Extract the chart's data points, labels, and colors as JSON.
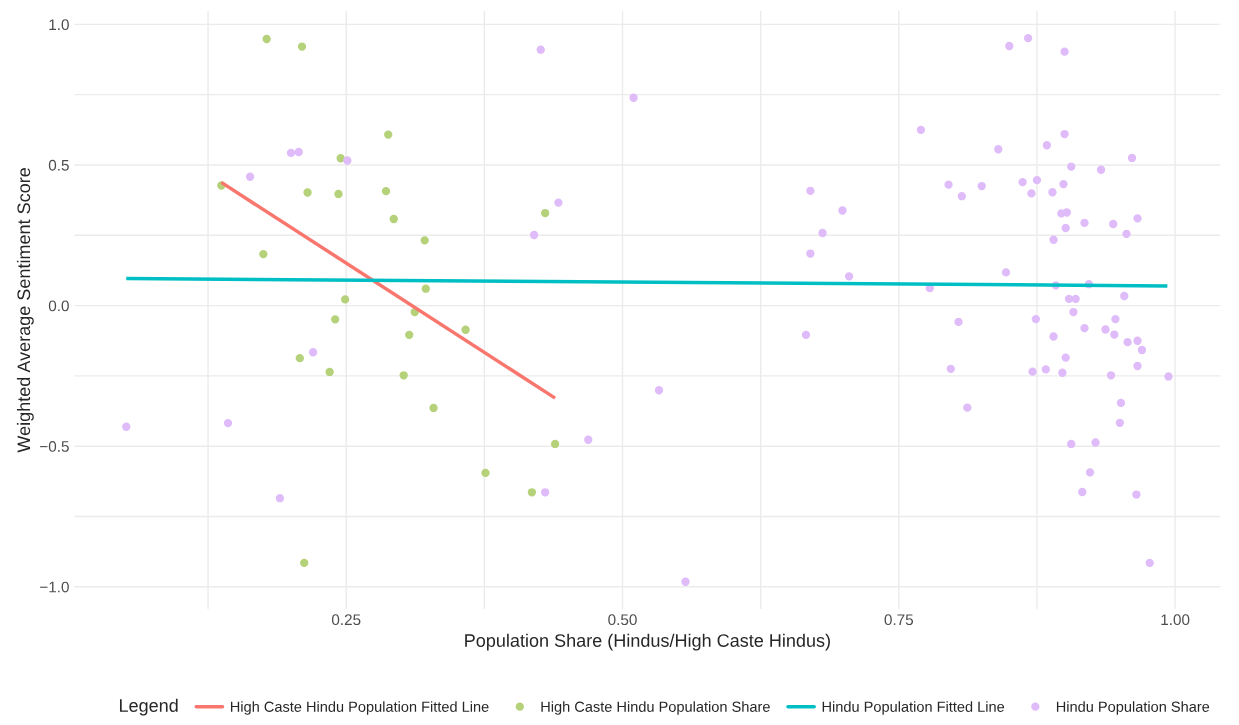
{
  "chart_data": {
    "type": "scatter",
    "xlabel": "Population Share (Hindus/High Caste Hindus)",
    "ylabel": "Weighted Average Sentiment Score",
    "legend_title": "Legend",
    "legend": "bottom",
    "grid": true,
    "xlim": [
      0.004,
      1.041
    ],
    "ylim": [
      -1.079,
      1.048
    ],
    "xticks": [
      {
        "value": 0.125,
        "label": null
      },
      {
        "value": 0.25,
        "label": "0.25"
      },
      {
        "value": 0.375,
        "label": null
      },
      {
        "value": 0.5,
        "label": "0.50"
      },
      {
        "value": 0.625,
        "label": null
      },
      {
        "value": 0.75,
        "label": "0.75"
      },
      {
        "value": 0.875,
        "label": null
      },
      {
        "value": 1.0,
        "label": "1.00"
      }
    ],
    "yticks": [
      {
        "value": -1.0,
        "label": "−1.0"
      },
      {
        "value": -0.75,
        "label": null
      },
      {
        "value": -0.5,
        "label": "−0.5"
      },
      {
        "value": -0.25,
        "label": null
      },
      {
        "value": 0.0,
        "label": "0.0"
      },
      {
        "value": 0.25,
        "label": null
      },
      {
        "value": 0.5,
        "label": "0.5"
      },
      {
        "value": 0.75,
        "label": null
      },
      {
        "value": 1.0,
        "label": "1.0"
      }
    ],
    "series": [
      {
        "name": "High Caste Hindu Population Fitted Line",
        "type": "line",
        "color": "#f8766d",
        "x": [
          0.137,
          0.439
        ],
        "values": [
          0.438,
          -0.329
        ]
      },
      {
        "name": "High Caste Hindu Population Share",
        "color": "#b5d27a",
        "marker": "circle",
        "x": [
          0.178,
          0.21,
          0.288,
          0.245,
          0.137,
          0.215,
          0.243,
          0.286,
          0.293,
          0.321,
          0.43,
          0.175,
          0.322,
          0.249,
          0.312,
          0.24,
          0.307,
          0.358,
          0.208,
          0.235,
          0.302,
          0.329,
          0.439,
          0.376,
          0.418,
          0.212
        ],
        "values": [
          0.948,
          0.921,
          0.608,
          0.524,
          0.427,
          0.402,
          0.397,
          0.407,
          0.308,
          0.232,
          0.329,
          0.183,
          0.06,
          0.022,
          -0.023,
          -0.049,
          -0.104,
          -0.086,
          -0.187,
          -0.236,
          -0.248,
          -0.364,
          -0.492,
          -0.595,
          -0.664,
          -0.915
        ]
      },
      {
        "name": "Hindu Population Fitted Line",
        "type": "line",
        "color": "#00bfc4",
        "x": [
          0.051,
          0.993
        ],
        "values": [
          0.096,
          0.07
        ]
      },
      {
        "name": "Hindu Population Share",
        "color": "#dfbcf9",
        "marker": "circle",
        "x": [
          0.426,
          0.2,
          0.207,
          0.251,
          0.163,
          0.442,
          0.42,
          0.22,
          0.051,
          0.143,
          0.19,
          0.43,
          0.469,
          0.51,
          0.85,
          0.867,
          0.9,
          0.77,
          0.9,
          0.884,
          0.84,
          0.961,
          0.906,
          0.933,
          0.795,
          0.825,
          0.807,
          0.862,
          0.875,
          0.899,
          0.87,
          0.889,
          0.67,
          0.699,
          0.681,
          0.67,
          0.705,
          0.897,
          0.902,
          0.918,
          0.944,
          0.966,
          0.901,
          0.956,
          0.89,
          0.847,
          0.778,
          0.892,
          0.922,
          0.904,
          0.91,
          0.954,
          0.804,
          0.666,
          0.874,
          0.908,
          0.918,
          0.937,
          0.945,
          0.946,
          0.89,
          0.957,
          0.966,
          0.97,
          0.901,
          0.966,
          0.797,
          0.871,
          0.883,
          0.898,
          0.942,
          0.994,
          0.533,
          0.812,
          0.951,
          0.95,
          0.906,
          0.928,
          0.923,
          0.916,
          0.965,
          0.977,
          0.557
        ],
        "values": [
          0.91,
          0.543,
          0.546,
          0.516,
          0.458,
          0.366,
          0.251,
          -0.166,
          -0.431,
          -0.418,
          -0.685,
          -0.664,
          -0.477,
          0.739,
          0.923,
          0.951,
          0.903,
          0.625,
          0.61,
          0.57,
          0.556,
          0.525,
          0.494,
          0.483,
          0.43,
          0.425,
          0.389,
          0.439,
          0.446,
          0.432,
          0.399,
          0.403,
          0.408,
          0.338,
          0.258,
          0.185,
          0.104,
          0.328,
          0.331,
          0.294,
          0.29,
          0.31,
          0.276,
          0.255,
          0.234,
          0.118,
          0.062,
          0.072,
          0.076,
          0.024,
          0.024,
          0.034,
          -0.058,
          -0.104,
          -0.048,
          -0.023,
          -0.08,
          -0.085,
          -0.103,
          -0.048,
          -0.11,
          -0.13,
          -0.125,
          -0.158,
          -0.185,
          -0.215,
          -0.225,
          -0.235,
          -0.227,
          -0.239,
          -0.248,
          -0.252,
          -0.301,
          -0.363,
          -0.346,
          -0.417,
          -0.492,
          -0.487,
          -0.593,
          -0.663,
          -0.672,
          -0.915,
          -0.982
        ]
      }
    ]
  }
}
